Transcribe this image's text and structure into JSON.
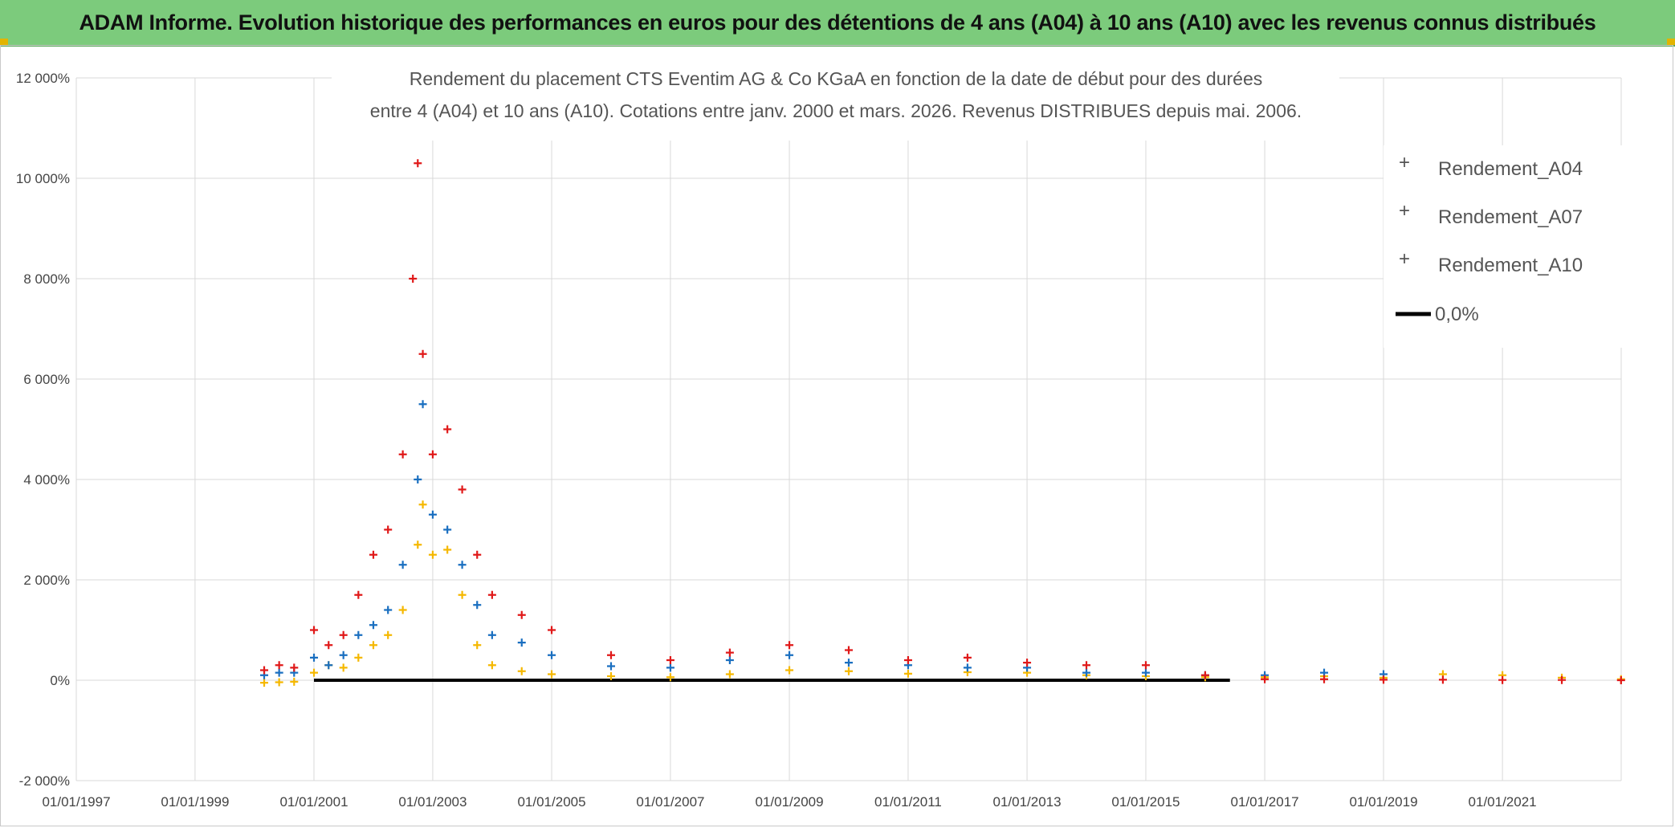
{
  "banner": {
    "title": "ADAM Informe. Evolution historique des performances en euros pour des détentions de 4 ans (A04) à 10 ans (A10) avec les revenus connus distribués"
  },
  "colors": {
    "banner_bg": "#7ccb7c",
    "A04": "#f5b800",
    "A07": "#1a6fc0",
    "A10": "#e01919",
    "zero_line": "#000000",
    "grid": "#d9d9d9"
  },
  "chart_data": {
    "type": "scatter",
    "title_lines": [
      "Rendement du placement CTS Eventim AG & Co KGaA en fonction de la date de début pour des durées",
      "entre 4 (A04) et 10 ans (A10). Cotations entre janv. 2000 et mars. 2026. Revenus DISTRIBUES depuis mai. 2006."
    ],
    "xlabel": "",
    "ylabel": "",
    "x_ticks": [
      "01/01/1997",
      "01/01/1999",
      "01/01/2001",
      "01/01/2003",
      "01/01/2005",
      "01/01/2007",
      "01/01/2009",
      "01/01/2011",
      "01/01/2013",
      "01/01/2015",
      "01/01/2017",
      "01/01/2019",
      "01/01/2021"
    ],
    "x_range": [
      "1997-01-01",
      "2023-01-01"
    ],
    "y_ticks": [
      "-2 000%",
      "0%",
      "2 000%",
      "4 000%",
      "6 000%",
      "8 000%",
      "10 000%",
      "12 000%"
    ],
    "ylim": [
      -2000,
      12000
    ],
    "grid": true,
    "legend_position": "top-right",
    "legend": [
      "Rendement_A04",
      "Rendement_A07",
      "Rendement_A10",
      "0,0%"
    ],
    "series": [
      {
        "name": "Rendement_A04",
        "marker": "+",
        "points": [
          [
            "2000-03-01",
            -50
          ],
          [
            "2000-06-01",
            -40
          ],
          [
            "2000-09-01",
            -30
          ],
          [
            "2001-01-01",
            150
          ],
          [
            "2001-04-01",
            300
          ],
          [
            "2001-07-01",
            250
          ],
          [
            "2001-10-01",
            450
          ],
          [
            "2002-01-01",
            700
          ],
          [
            "2002-04-01",
            900
          ],
          [
            "2002-07-01",
            1400
          ],
          [
            "2002-10-01",
            2700
          ],
          [
            "2002-11-01",
            3500
          ],
          [
            "2003-01-01",
            2500
          ],
          [
            "2003-04-01",
            2600
          ],
          [
            "2003-07-01",
            1700
          ],
          [
            "2003-10-01",
            700
          ],
          [
            "2004-01-01",
            300
          ],
          [
            "2004-07-01",
            180
          ],
          [
            "2005-01-01",
            120
          ],
          [
            "2006-01-01",
            80
          ],
          [
            "2007-01-01",
            60
          ],
          [
            "2008-01-01",
            120
          ],
          [
            "2009-01-01",
            200
          ],
          [
            "2010-01-01",
            180
          ],
          [
            "2011-01-01",
            130
          ],
          [
            "2012-01-01",
            160
          ],
          [
            "2013-01-01",
            150
          ],
          [
            "2014-01-01",
            100
          ],
          [
            "2015-01-01",
            80
          ],
          [
            "2016-01-01",
            60
          ],
          [
            "2017-01-01",
            60
          ],
          [
            "2018-01-01",
            80
          ],
          [
            "2019-01-01",
            50
          ],
          [
            "2020-01-01",
            120
          ],
          [
            "2021-01-01",
            100
          ],
          [
            "2022-01-01",
            50
          ],
          [
            "2022-12-31",
            20
          ]
        ]
      },
      {
        "name": "Rendement_A07",
        "marker": "+",
        "points": [
          [
            "2000-03-01",
            100
          ],
          [
            "2000-06-01",
            150
          ],
          [
            "2000-09-01",
            150
          ],
          [
            "2001-01-01",
            450
          ],
          [
            "2001-04-01",
            300
          ],
          [
            "2001-07-01",
            500
          ],
          [
            "2001-10-01",
            900
          ],
          [
            "2002-01-01",
            1100
          ],
          [
            "2002-04-01",
            1400
          ],
          [
            "2002-07-01",
            2300
          ],
          [
            "2002-10-01",
            4000
          ],
          [
            "2002-11-01",
            5500
          ],
          [
            "2003-01-01",
            3300
          ],
          [
            "2003-04-01",
            3000
          ],
          [
            "2003-07-01",
            2300
          ],
          [
            "2003-10-01",
            1500
          ],
          [
            "2004-01-01",
            900
          ],
          [
            "2004-07-01",
            750
          ],
          [
            "2005-01-01",
            500
          ],
          [
            "2006-01-01",
            280
          ],
          [
            "2007-01-01",
            250
          ],
          [
            "2008-01-01",
            400
          ],
          [
            "2009-01-01",
            500
          ],
          [
            "2010-01-01",
            350
          ],
          [
            "2011-01-01",
            300
          ],
          [
            "2012-01-01",
            250
          ],
          [
            "2013-01-01",
            250
          ],
          [
            "2014-01-01",
            150
          ],
          [
            "2015-01-01",
            150
          ],
          [
            "2016-01-01",
            100
          ],
          [
            "2017-01-01",
            100
          ],
          [
            "2018-01-01",
            150
          ],
          [
            "2019-01-01",
            120
          ]
        ]
      },
      {
        "name": "Rendement_A10",
        "marker": "+",
        "points": [
          [
            "2000-03-01",
            200
          ],
          [
            "2000-06-01",
            300
          ],
          [
            "2000-09-01",
            250
          ],
          [
            "2001-01-01",
            1000
          ],
          [
            "2001-04-01",
            700
          ],
          [
            "2001-07-01",
            900
          ],
          [
            "2001-10-01",
            1700
          ],
          [
            "2002-01-01",
            2500
          ],
          [
            "2002-04-01",
            3000
          ],
          [
            "2002-07-01",
            4500
          ],
          [
            "2002-09-01",
            8000
          ],
          [
            "2002-10-01",
            10300
          ],
          [
            "2002-11-01",
            6500
          ],
          [
            "2003-01-01",
            4500
          ],
          [
            "2003-04-01",
            5000
          ],
          [
            "2003-07-01",
            3800
          ],
          [
            "2003-10-01",
            2500
          ],
          [
            "2004-01-01",
            1700
          ],
          [
            "2004-07-01",
            1300
          ],
          [
            "2005-01-01",
            1000
          ],
          [
            "2006-01-01",
            500
          ],
          [
            "2007-01-01",
            400
          ],
          [
            "2008-01-01",
            550
          ],
          [
            "2009-01-01",
            700
          ],
          [
            "2010-01-01",
            600
          ],
          [
            "2011-01-01",
            400
          ],
          [
            "2012-01-01",
            450
          ],
          [
            "2013-01-01",
            350
          ],
          [
            "2014-01-01",
            300
          ],
          [
            "2015-01-01",
            300
          ],
          [
            "2016-01-01",
            100
          ],
          [
            "2017-01-01",
            20
          ],
          [
            "2018-01-01",
            20
          ],
          [
            "2019-01-01",
            10
          ],
          [
            "2020-01-01",
            10
          ],
          [
            "2021-01-01",
            5
          ],
          [
            "2022-01-01",
            5
          ],
          [
            "2022-12-31",
            0
          ]
        ]
      },
      {
        "name": "0,0%",
        "type": "line",
        "points": [
          [
            "2001-01-01",
            0
          ],
          [
            "2016-06-01",
            0
          ]
        ]
      }
    ]
  }
}
